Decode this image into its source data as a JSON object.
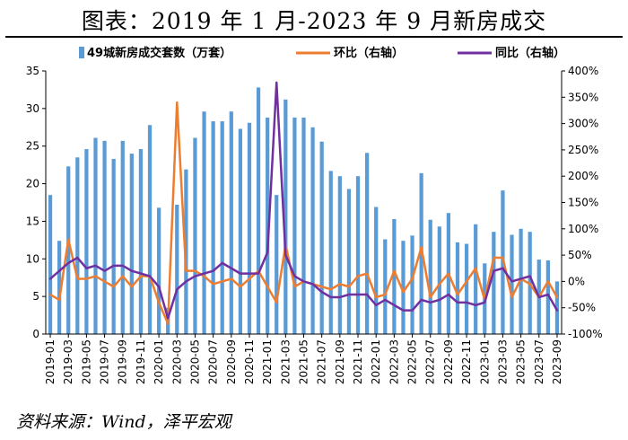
{
  "title": "图表：2019 年 1 月-2023 年 9 月新房成交",
  "source": "资料来源：Wind，泽平宏观",
  "colors": {
    "bar": "#5b9bd5",
    "mom": "#ed7d31",
    "yoy": "#7030a0"
  },
  "chart_data": {
    "type": "bar",
    "categories": [
      "2019-01",
      "2019-02",
      "2019-03",
      "2019-04",
      "2019-05",
      "2019-06",
      "2019-07",
      "2019-08",
      "2019-09",
      "2019-10",
      "2019-11",
      "2019-12",
      "2020-01",
      "2020-02",
      "2020-03",
      "2020-04",
      "2020-05",
      "2020-06",
      "2020-07",
      "2020-08",
      "2020-09",
      "2020-10",
      "2020-11",
      "2020-12",
      "2021-01",
      "2021-02",
      "2021-03",
      "2021-04",
      "2021-05",
      "2021-06",
      "2021-07",
      "2021-08",
      "2021-09",
      "2021-10",
      "2021-11",
      "2021-12",
      "2022-01",
      "2022-02",
      "2022-03",
      "2022-04",
      "2022-05",
      "2022-06",
      "2022-07",
      "2022-08",
      "2022-09",
      "2022-10",
      "2022-11",
      "2022-12",
      "2023-01",
      "2023-02",
      "2023-03",
      "2023-04",
      "2023-05",
      "2023-06",
      "2023-07",
      "2023-08",
      "2023-09"
    ],
    "tick_labels": [
      "2019-01",
      "2019-03",
      "2019-05",
      "2019-07",
      "2019-09",
      "2019-11",
      "2020-01",
      "2020-03",
      "2020-05",
      "2020-07",
      "2020-09",
      "2020-11",
      "2021-01",
      "2021-03",
      "2021-05",
      "2021-07",
      "2021-09",
      "2021-11",
      "2022-01",
      "2022-03",
      "2022-05",
      "2022-07",
      "2022-09",
      "2022-11",
      "2023-01",
      "2023-03",
      "2023-05",
      "2023-07",
      "2023-09"
    ],
    "left_axis": {
      "ylim": [
        0,
        35
      ],
      "ticks": [
        "0",
        "5",
        "10",
        "15",
        "20",
        "25",
        "30",
        "35"
      ]
    },
    "right_axis": {
      "ylim": [
        -100,
        400
      ],
      "ticks": [
        "-100%",
        "-50%",
        "0%",
        "50%",
        "100%",
        "150%",
        "200%",
        "250%",
        "300%",
        "350%",
        "400%"
      ]
    },
    "series": [
      {
        "name": "49城新房成交套数（万套）",
        "type": "bar",
        "axis": "left",
        "values": [
          18.5,
          12.4,
          22.3,
          23.5,
          24.6,
          26.1,
          25.7,
          23.3,
          25.7,
          24.0,
          24.6,
          27.8,
          16.8,
          3.5,
          17.2,
          21.9,
          26.1,
          29.6,
          28.3,
          28.3,
          29.6,
          27.3,
          28.1,
          32.8,
          28.8,
          18.5,
          31.2,
          28.8,
          28.8,
          27.5,
          25.6,
          21.7,
          21.0,
          19.3,
          21.0,
          24.1,
          16.9,
          12.6,
          15.3,
          12.4,
          13.1,
          21.4,
          15.2,
          14.3,
          16.1,
          12.2,
          12.0,
          14.6,
          9.4,
          13.6,
          19.1,
          13.2,
          14.0,
          13.6,
          9.9,
          9.8,
          7.0
        ]
      },
      {
        "name": "环比（右轴）",
        "type": "line",
        "axis": "right",
        "values": [
          -25,
          -35,
          80,
          5,
          5,
          10,
          0,
          -10,
          10,
          -10,
          10,
          10,
          -40,
          -80,
          340,
          20,
          20,
          10,
          -5,
          0,
          5,
          -10,
          5,
          20,
          -10,
          -40,
          70,
          -10,
          0,
          -5,
          -10,
          -15,
          -5,
          -10,
          10,
          15,
          -30,
          -25,
          20,
          -20,
          5,
          65,
          -30,
          -5,
          15,
          -25,
          0,
          25,
          -35,
          45,
          45,
          -30,
          5,
          -5,
          -30,
          0,
          -30
        ]
      },
      {
        "name": "同比（右轴）",
        "type": "line",
        "axis": "right",
        "values": [
          5,
          20,
          35,
          45,
          25,
          30,
          20,
          30,
          30,
          20,
          15,
          10,
          -10,
          -70,
          -15,
          0,
          10,
          15,
          20,
          35,
          25,
          15,
          15,
          15,
          55,
          378,
          50,
          10,
          0,
          -5,
          -20,
          -30,
          -30,
          -25,
          -25,
          -25,
          -45,
          -35,
          -45,
          -55,
          -55,
          -35,
          -40,
          -35,
          -25,
          -40,
          -40,
          -45,
          -40,
          20,
          25,
          0,
          5,
          10,
          -30,
          -25,
          -55
        ]
      }
    ],
    "legend_position": "top",
    "grid": false
  }
}
